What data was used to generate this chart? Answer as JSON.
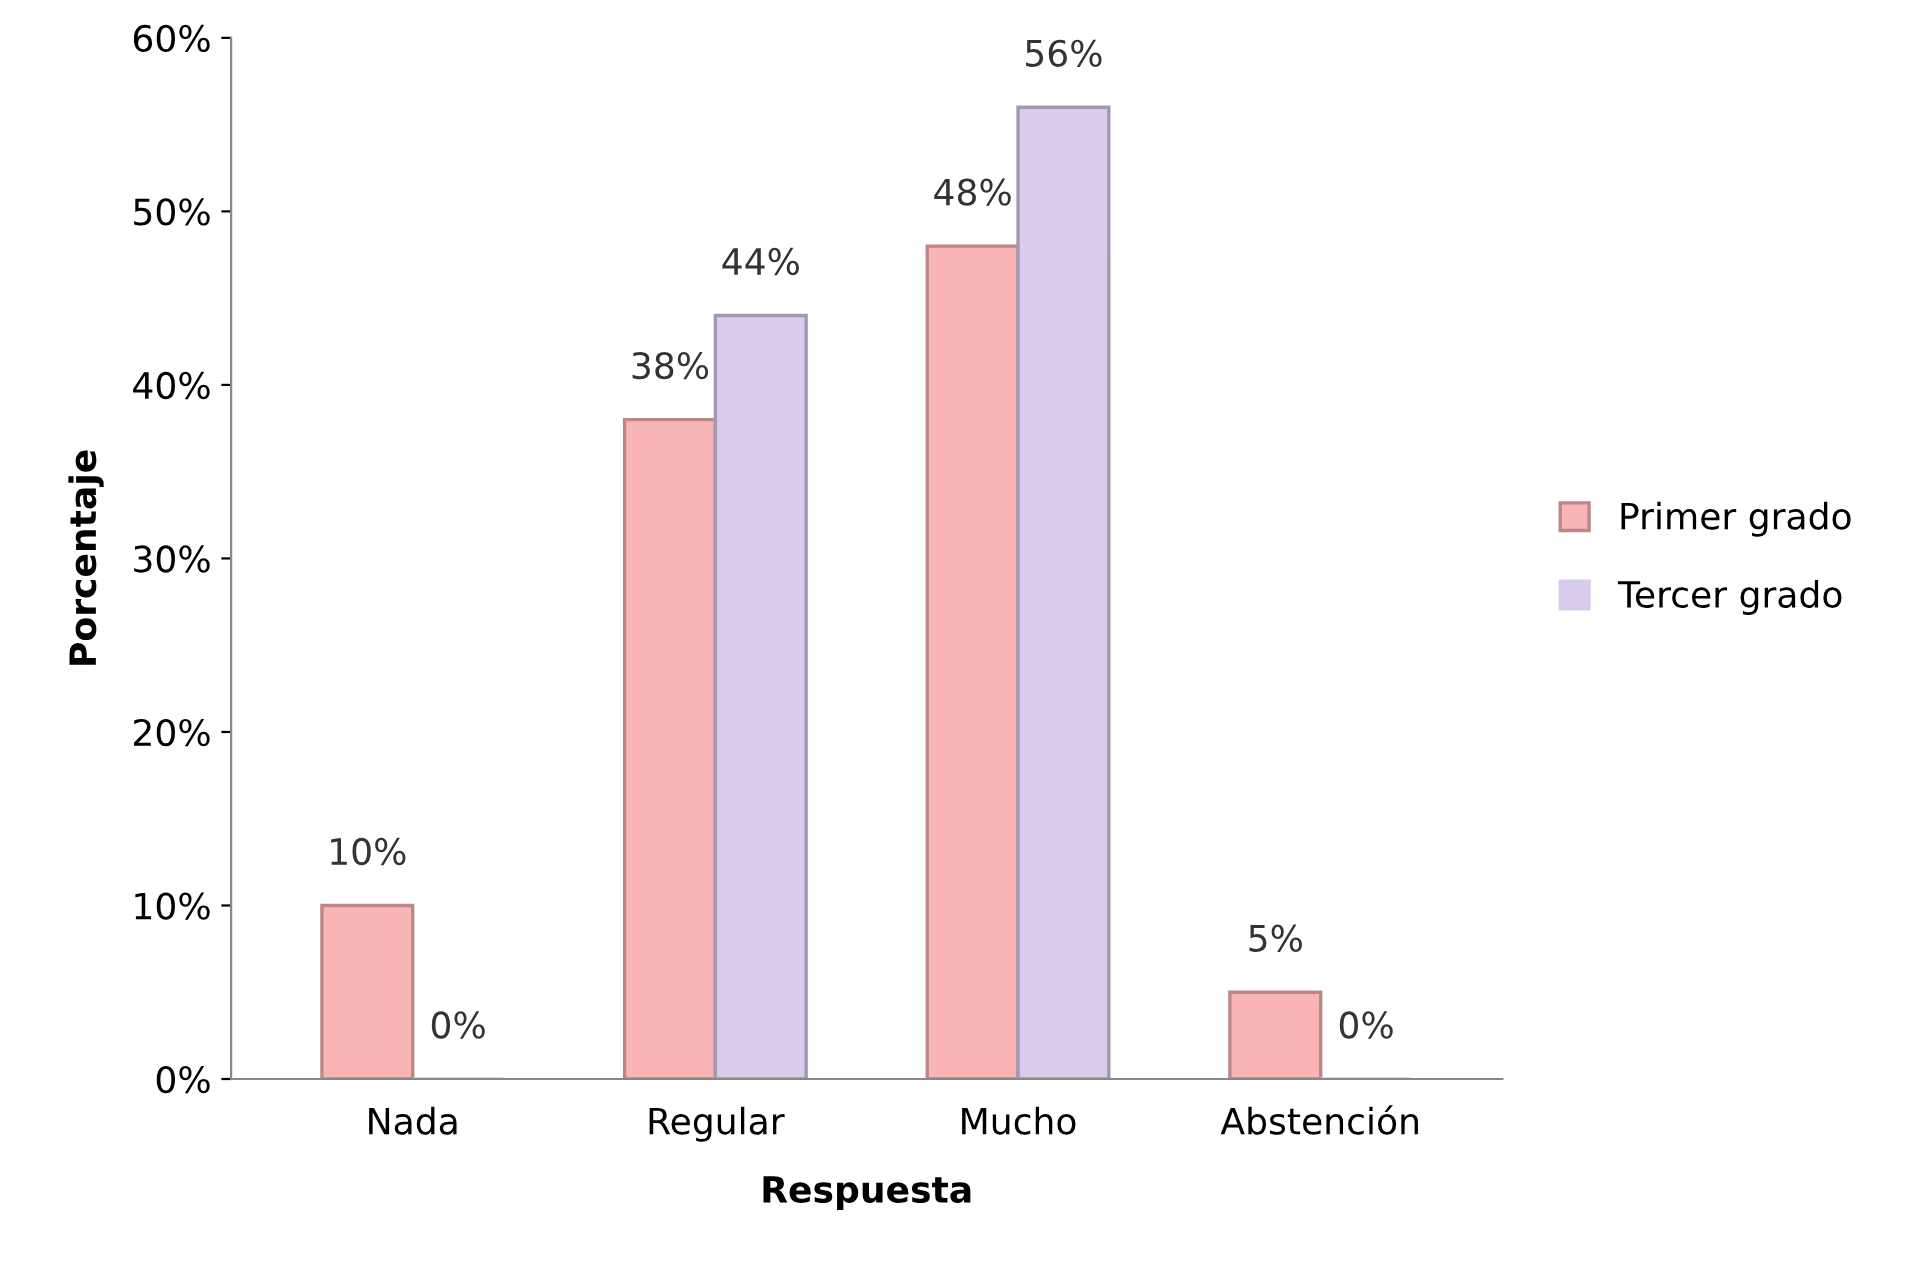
{
  "chart_data": {
    "type": "bar",
    "xlabel": "Respuesta",
    "ylabel": "Porcentaje",
    "categories": [
      "Nada",
      "Regular",
      "Mucho",
      "Abstención"
    ],
    "series": [
      {
        "name": "Primer grado",
        "color": "#f9b4b4",
        "values": [
          10,
          38,
          48,
          5
        ],
        "value_labels": [
          "10%",
          "38%",
          "48%",
          "5%"
        ]
      },
      {
        "name": "Tercer grado",
        "color": "#d8cbec",
        "values": [
          0,
          44,
          56,
          0
        ],
        "value_labels": [
          "0%",
          "44%",
          "56%",
          "0%"
        ]
      }
    ],
    "ylim": [
      0,
      60
    ],
    "yticks": [
      {
        "value": 0,
        "label": "0%"
      },
      {
        "value": 10,
        "label": "10%"
      },
      {
        "value": 20,
        "label": "20%"
      },
      {
        "value": 30,
        "label": "30%"
      },
      {
        "value": 40,
        "label": "40%"
      },
      {
        "value": 50,
        "label": "50%"
      },
      {
        "value": 60,
        "label": "60%"
      }
    ],
    "grid": false,
    "legend": "right"
  }
}
